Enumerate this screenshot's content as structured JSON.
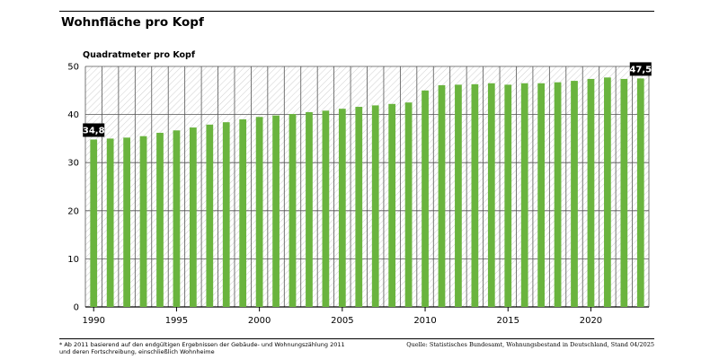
{
  "chart_data": {
    "type": "bar",
    "title": "Wohnfläche pro Kopf",
    "ylabel": "Quadratmeter pro Kopf",
    "xlabel": "",
    "categories": [
      1990,
      1991,
      1992,
      1993,
      1994,
      1995,
      1996,
      1997,
      1998,
      1999,
      2000,
      2001,
      2002,
      2003,
      2004,
      2005,
      2006,
      2007,
      2008,
      2009,
      2010,
      2011,
      2012,
      2013,
      2014,
      2015,
      2016,
      2017,
      2018,
      2019,
      2020,
      2021,
      2022,
      2023
    ],
    "values": [
      34.8,
      35.0,
      35.2,
      35.5,
      36.2,
      36.7,
      37.3,
      37.9,
      38.4,
      39.0,
      39.5,
      39.8,
      40.1,
      40.5,
      40.8,
      41.2,
      41.6,
      41.9,
      42.2,
      42.5,
      45.0,
      46.1,
      46.2,
      46.3,
      46.5,
      46.2,
      46.5,
      46.5,
      46.7,
      47.0,
      47.4,
      47.7,
      47.4,
      47.5
    ],
    "ylim": [
      0,
      50
    ],
    "yticks": [
      0,
      10,
      20,
      30,
      40,
      50
    ],
    "xticks": [
      1990,
      1995,
      2000,
      2005,
      2010,
      2015,
      2020
    ],
    "grid": true,
    "bar_color": "#6ab43e",
    "callouts": [
      {
        "category": 1990,
        "label": "34,8"
      },
      {
        "category": 2023,
        "label": "47,5"
      }
    ]
  },
  "footnote": {
    "line1": "* Ab 2011 basierend auf den endgültigen Ergebnissen der Gebäude- und Wohnungszählung 2011",
    "line2": "und deren Fortschreibung, einschließlich Wohnheime"
  },
  "source": "Quelle: Statistisches Bundesamt, Wohnungsbestand in Deutschland, Stand 04/2025"
}
